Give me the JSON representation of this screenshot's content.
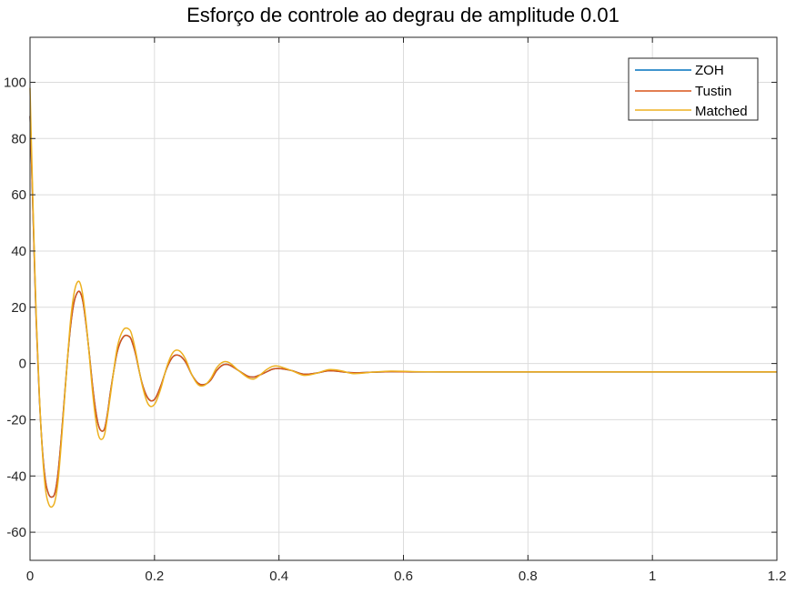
{
  "chart_data": {
    "type": "line",
    "title": "Esforço de controle ao degrau de amplitude 0.01",
    "xlabel": "",
    "ylabel": "",
    "xlim": [
      0,
      1.2
    ],
    "ylim": [
      -70,
      116
    ],
    "xticks": [
      0,
      0.2,
      0.4,
      0.6,
      0.8,
      1,
      1.2
    ],
    "xtick_labels": [
      "0",
      "0.2",
      "0.4",
      "0.6",
      "0.8",
      "1",
      "1.2"
    ],
    "yticks": [
      -60,
      -40,
      -20,
      0,
      20,
      40,
      60,
      80,
      100
    ],
    "ytick_labels": [
      "-60",
      "-40",
      "-20",
      "0",
      "20",
      "40",
      "60",
      "80",
      "100"
    ],
    "grid": true,
    "legend_position": "top-right",
    "series": [
      {
        "name": "ZOH",
        "color": "#0072BD",
        "x": [
          0,
          0.002,
          0.005,
          0.01,
          0.015,
          0.02,
          0.025,
          0.03,
          0.035,
          0.04,
          0.045,
          0.05,
          0.055,
          0.06,
          0.065,
          0.07,
          0.075,
          0.08,
          0.085,
          0.09,
          0.095,
          0.1,
          0.105,
          0.11,
          0.115,
          0.12,
          0.125,
          0.13,
          0.14,
          0.15,
          0.16,
          0.165,
          0.17,
          0.18,
          0.19,
          0.2,
          0.21,
          0.22,
          0.23,
          0.24,
          0.25,
          0.26,
          0.27,
          0.28,
          0.29,
          0.3,
          0.31,
          0.32,
          0.335,
          0.35,
          0.36,
          0.37,
          0.38,
          0.39,
          0.4,
          0.42,
          0.44,
          0.46,
          0.48,
          0.5,
          0.52,
          0.55,
          0.58,
          0.62,
          0.66,
          0.7,
          0.8,
          0.9,
          1.0,
          1.1,
          1.2
        ],
        "values": [
          88,
          75,
          52,
          15,
          -12,
          -31,
          -42,
          -46.5,
          -47.5,
          -46,
          -39,
          -27,
          -13,
          1,
          13,
          21,
          24.8,
          25.5,
          22,
          14,
          4,
          -7,
          -16,
          -22,
          -24,
          -23,
          -17,
          -9,
          4,
          9.5,
          9.5,
          7,
          3,
          -7,
          -12.5,
          -12.8,
          -8,
          -1.5,
          2.5,
          2.8,
          0.5,
          -4,
          -7,
          -7.5,
          -6,
          -2.5,
          -0.5,
          -0.5,
          -2.5,
          -4.5,
          -4.8,
          -4,
          -3,
          -2,
          -1.8,
          -2.5,
          -3.8,
          -3.4,
          -2.6,
          -2.9,
          -3.3,
          -3.1,
          -2.9,
          -3.0,
          -3.0,
          -3.0,
          -3.0,
          -3.0,
          -3.0,
          -3.0,
          -3.0
        ]
      },
      {
        "name": "Tustin",
        "color": "#D95319",
        "x": [
          0,
          0.002,
          0.005,
          0.01,
          0.015,
          0.02,
          0.025,
          0.03,
          0.035,
          0.04,
          0.045,
          0.05,
          0.055,
          0.06,
          0.065,
          0.07,
          0.075,
          0.08,
          0.085,
          0.09,
          0.095,
          0.1,
          0.105,
          0.11,
          0.115,
          0.12,
          0.125,
          0.13,
          0.14,
          0.15,
          0.16,
          0.165,
          0.17,
          0.18,
          0.19,
          0.2,
          0.21,
          0.22,
          0.23,
          0.24,
          0.25,
          0.26,
          0.27,
          0.28,
          0.29,
          0.3,
          0.31,
          0.32,
          0.335,
          0.35,
          0.36,
          0.37,
          0.38,
          0.39,
          0.4,
          0.42,
          0.44,
          0.46,
          0.48,
          0.5,
          0.52,
          0.55,
          0.58,
          0.62,
          0.66,
          0.7,
          0.8,
          0.9,
          1.0,
          1.1,
          1.2
        ],
        "values": [
          88,
          75,
          52,
          15,
          -12,
          -31,
          -42,
          -46.5,
          -47.5,
          -46,
          -39,
          -27,
          -13,
          1,
          13,
          21,
          24.8,
          25.5,
          22,
          14,
          4,
          -7,
          -16,
          -22,
          -24,
          -23,
          -17,
          -9,
          4,
          9.5,
          9.5,
          7,
          3,
          -7,
          -12.5,
          -12.8,
          -8,
          -1.5,
          2.5,
          2.8,
          0.5,
          -4,
          -7,
          -7.5,
          -6,
          -2.5,
          -0.5,
          -0.5,
          -2.5,
          -4.5,
          -4.8,
          -4,
          -3,
          -2,
          -1.8,
          -2.5,
          -3.8,
          -3.4,
          -2.6,
          -2.9,
          -3.3,
          -3.1,
          -2.9,
          -3.0,
          -3.0,
          -3.0,
          -3.0,
          -3.0,
          -3.0,
          -3.0,
          -3.0
        ]
      },
      {
        "name": "Matched",
        "color": "#EDB120",
        "x": [
          0,
          0.002,
          0.005,
          0.01,
          0.015,
          0.02,
          0.025,
          0.03,
          0.035,
          0.04,
          0.045,
          0.05,
          0.055,
          0.06,
          0.065,
          0.07,
          0.075,
          0.08,
          0.085,
          0.09,
          0.095,
          0.1,
          0.105,
          0.11,
          0.115,
          0.12,
          0.125,
          0.13,
          0.14,
          0.15,
          0.16,
          0.165,
          0.17,
          0.18,
          0.19,
          0.2,
          0.21,
          0.22,
          0.23,
          0.24,
          0.25,
          0.26,
          0.27,
          0.28,
          0.29,
          0.3,
          0.31,
          0.32,
          0.335,
          0.35,
          0.36,
          0.37,
          0.38,
          0.39,
          0.4,
          0.42,
          0.44,
          0.46,
          0.48,
          0.5,
          0.52,
          0.55,
          0.58,
          0.62,
          0.66,
          0.7,
          0.8,
          0.9,
          1.0,
          1.1,
          1.2
        ],
        "values": [
          98,
          80,
          55,
          17,
          -11,
          -32,
          -45,
          -50,
          -51,
          -49,
          -42,
          -29,
          -14,
          1,
          15,
          24,
          28.5,
          28.8,
          24,
          15,
          3.5,
          -9,
          -19,
          -25.5,
          -27,
          -25,
          -18,
          -10,
          5.5,
          12,
          12,
          9,
          4,
          -7.5,
          -14.5,
          -14.5,
          -9,
          -1,
          4,
          4.5,
          1.5,
          -4,
          -7.5,
          -7.8,
          -5.5,
          -1.5,
          0.5,
          0.3,
          -2.5,
          -5,
          -5.5,
          -4,
          -2.2,
          -1,
          -1,
          -2.5,
          -4.2,
          -3.5,
          -2.2,
          -2.6,
          -3.6,
          -3.1,
          -2.7,
          -2.9,
          -3.0,
          -3.0,
          -3.0,
          -3.0,
          -3.0,
          -3.0,
          -3.0
        ]
      }
    ]
  }
}
